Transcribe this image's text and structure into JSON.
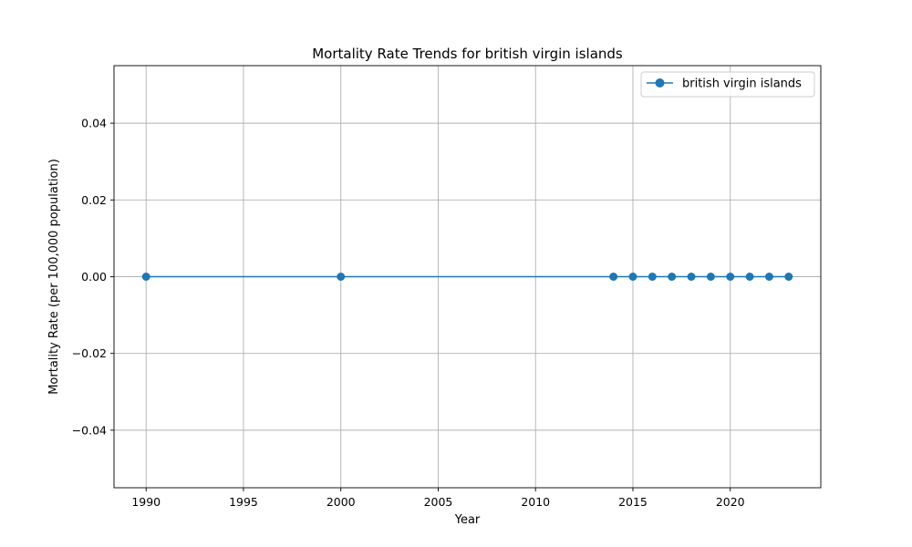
{
  "chart_data": {
    "type": "line",
    "title": "Mortality Rate Trends for british virgin islands",
    "xlabel": "Year",
    "ylabel": "Mortality Rate (per 100,000 population)",
    "xlim": [
      1988.35,
      2024.65
    ],
    "ylim": [
      -0.055,
      0.055
    ],
    "xticks": [
      1990,
      1995,
      2000,
      2005,
      2010,
      2015,
      2020
    ],
    "xtick_labels": [
      "1990",
      "1995",
      "2000",
      "2005",
      "2010",
      "2015",
      "2020"
    ],
    "yticks": [
      -0.04,
      -0.02,
      0.0,
      0.02,
      0.04
    ],
    "ytick_labels": [
      "−0.04",
      "−0.02",
      "0.00",
      "0.02",
      "0.04"
    ],
    "grid": true,
    "legend_position": "top-right",
    "series": [
      {
        "name": "british virgin islands",
        "color": "#1f77b4",
        "marker": "circle",
        "x": [
          1990,
          2000,
          2014,
          2015,
          2016,
          2017,
          2018,
          2019,
          2020,
          2021,
          2022,
          2023
        ],
        "y": [
          0,
          0,
          0,
          0,
          0,
          0,
          0,
          0,
          0,
          0,
          0,
          0
        ]
      }
    ]
  }
}
